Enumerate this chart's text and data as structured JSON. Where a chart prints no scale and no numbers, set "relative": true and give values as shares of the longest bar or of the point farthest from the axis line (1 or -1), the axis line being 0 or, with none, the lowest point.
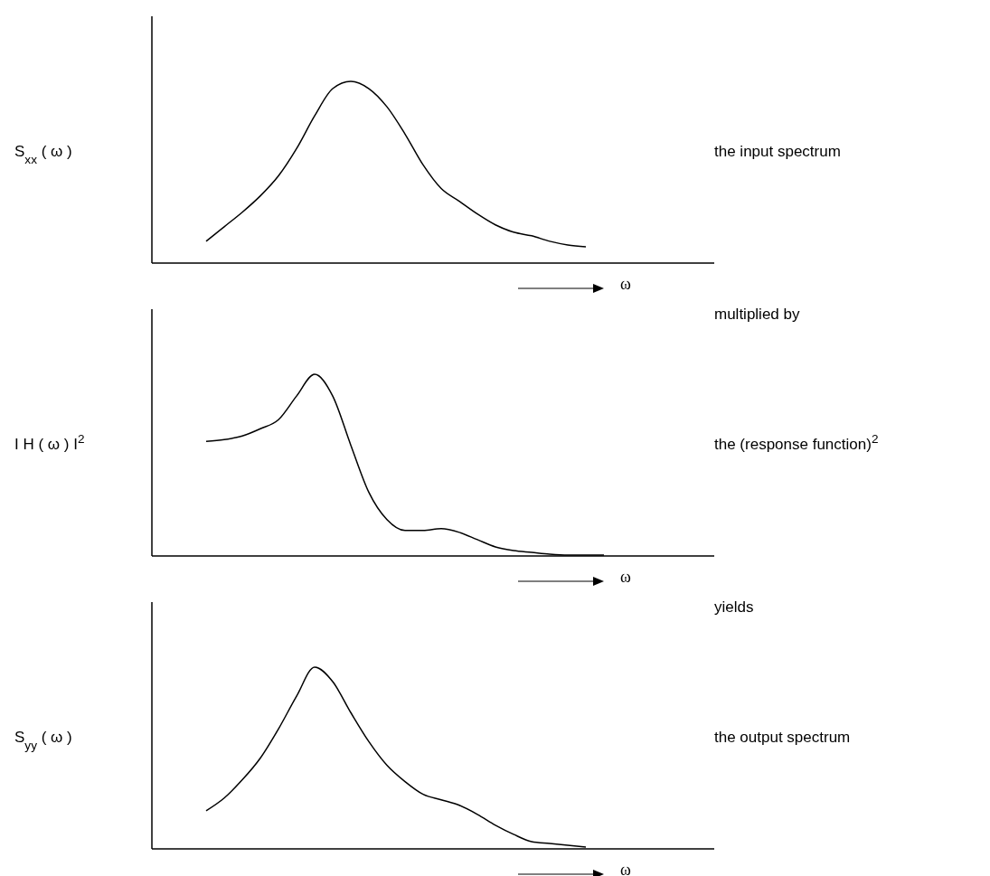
{
  "chart_data": [
    {
      "type": "line",
      "relative": true,
      "ylabel": "S$_{xx}$ ( ω )",
      "xlabel": "ω",
      "color": "#000000",
      "annotations": [
        "the input spectrum",
        "multiplied by"
      ],
      "categories": [
        null,
        null,
        null,
        null,
        null,
        null,
        null,
        null,
        null,
        null,
        null,
        null,
        null,
        null,
        null,
        null,
        null,
        null,
        null,
        null,
        null,
        null,
        null,
        null,
        null,
        null,
        null,
        null,
        null,
        null,
        null,
        null
      ],
      "values": [
        null,
        null,
        null,
        0.12,
        0.2,
        0.28,
        0.37,
        0.48,
        0.63,
        0.81,
        0.96,
        1,
        0.96,
        0.86,
        0.71,
        0.54,
        0.41,
        0.34,
        0.27,
        0.21,
        0.17,
        0.15,
        0.12,
        0.1,
        0.09,
        null,
        null,
        null,
        null,
        null,
        null,
        null
      ]
    },
    {
      "type": "line",
      "relative": true,
      "ylabel": "I H ( ω ) I$^{2}$",
      "xlabel": "ω",
      "color": "#000000",
      "annotations": [
        "the  (response function)$^{2}$",
        "yields"
      ],
      "categories": [
        null,
        null,
        null,
        null,
        null,
        null,
        null,
        null,
        null,
        null,
        null,
        null,
        null,
        null,
        null,
        null,
        null,
        null,
        null,
        null,
        null,
        null,
        null,
        null,
        null,
        null,
        null,
        null,
        null,
        null,
        null,
        null
      ],
      "values": [
        null,
        null,
        null,
        0.63,
        0.64,
        0.66,
        0.7,
        0.75,
        0.88,
        1,
        0.88,
        0.61,
        0.35,
        0.2,
        0.14,
        0.14,
        0.15,
        0.13,
        0.09,
        0.05,
        0.03,
        0.02,
        0.01,
        0.005,
        0.005,
        0.005,
        null,
        null,
        null,
        null,
        null,
        null
      ]
    },
    {
      "type": "line",
      "relative": true,
      "ylabel": "S$_{yy}$ ( ω )",
      "xlabel": "ω",
      "color": "#000000",
      "annotations": [
        "the output spectrum"
      ],
      "categories": [
        null,
        null,
        null,
        null,
        null,
        null,
        null,
        null,
        null,
        null,
        null,
        null,
        null,
        null,
        null,
        null,
        null,
        null,
        null,
        null,
        null,
        null,
        null,
        null,
        null,
        null,
        null,
        null,
        null,
        null,
        null,
        null
      ],
      "values": [
        null,
        null,
        null,
        0.21,
        0.28,
        0.38,
        0.5,
        0.66,
        0.84,
        1,
        0.92,
        0.75,
        0.59,
        0.46,
        0.37,
        0.3,
        0.27,
        0.24,
        0.19,
        0.13,
        0.08,
        0.04,
        0.03,
        0.02,
        0.01,
        null,
        null,
        null,
        null,
        null,
        null,
        null
      ]
    }
  ]
}
